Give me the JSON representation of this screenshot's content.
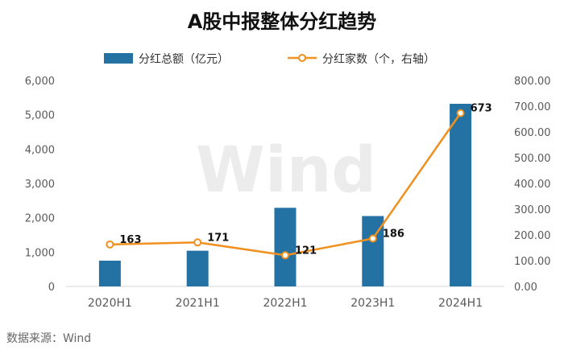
{
  "chart_data": {
    "type": "bar+line",
    "title": "A股中报整体分红趋势",
    "categories": [
      "2020H1",
      "2021H1",
      "2022H1",
      "2023H1",
      "2024H1"
    ],
    "series": [
      {
        "name": "分红总额（亿元）",
        "type": "bar",
        "axis": "left",
        "color": "#2472a4",
        "values": [
          750,
          1040,
          2290,
          2050,
          5320
        ]
      },
      {
        "name": "分红家数（个，右轴）",
        "type": "line",
        "axis": "right",
        "color": "#f0901e",
        "values": [
          163,
          171,
          121,
          186,
          673
        ],
        "labels": [
          "163",
          "171",
          "121",
          "186",
          "673"
        ]
      }
    ],
    "left_axis": {
      "ylim": [
        0,
        6000
      ],
      "ticks": [
        "0",
        "1,000",
        "2,000",
        "3,000",
        "4,000",
        "5,000",
        "6,000"
      ]
    },
    "right_axis": {
      "ylim": [
        0,
        800
      ],
      "ticks": [
        "0.00",
        "100.00",
        "200.00",
        "300.00",
        "400.00",
        "500.00",
        "600.00",
        "700.00",
        "800.00"
      ]
    },
    "legend_position": "top-center",
    "grid": false
  },
  "watermark": "Wind",
  "source": "数据来源：Wind"
}
